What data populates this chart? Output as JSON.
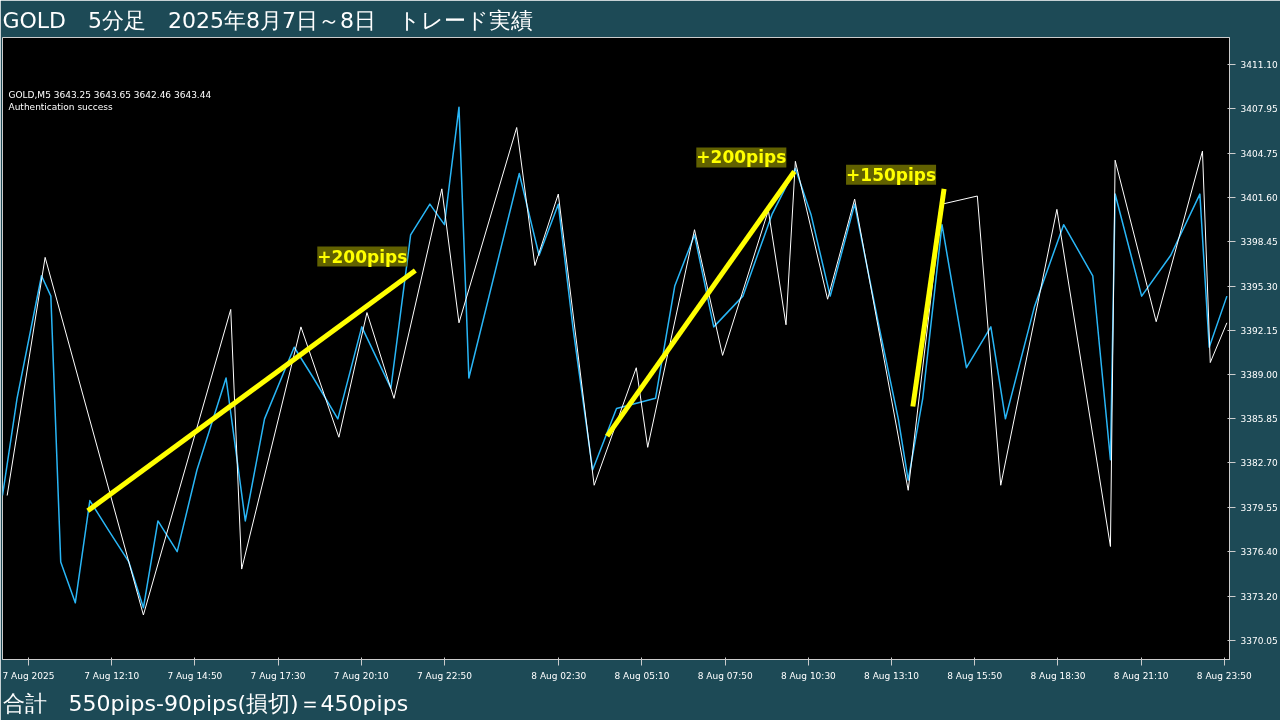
{
  "chart_data": {
    "type": "line",
    "title": "GOLD　5分足　2025年8月7日～8日　トレード実績",
    "annotations": [
      "GOLD,M5  3643.25 3643.65 3642.46 3643.44",
      "Authentication success",
      "合計　550pips-90pips(損切)＝450pips"
    ],
    "xlim": [
      "2025-08-07T08:40",
      "2025-08-09T00:00"
    ],
    "ylim": [
      3368.7,
      3413.0
    ],
    "xticks": [
      {
        "value": "2025-08-07T09:30",
        "label": "7 Aug 2025"
      },
      {
        "value": "2025-08-07T12:10",
        "label": "7 Aug 12:10"
      },
      {
        "value": "2025-08-07T14:50",
        "label": "7 Aug 14:50"
      },
      {
        "value": "2025-08-07T17:30",
        "label": "7 Aug 17:30"
      },
      {
        "value": "2025-08-07T20:10",
        "label": "7 Aug 20:10"
      },
      {
        "value": "2025-08-07T22:50",
        "label": "7 Aug 22:50"
      },
      {
        "value": "2025-08-08T02:30",
        "label": "8 Aug 02:30"
      },
      {
        "value": "2025-08-08T05:10",
        "label": "8 Aug 05:10"
      },
      {
        "value": "2025-08-08T07:50",
        "label": "8 Aug 07:50"
      },
      {
        "value": "2025-08-08T10:30",
        "label": "8 Aug 10:30"
      },
      {
        "value": "2025-08-08T13:10",
        "label": "8 Aug 13:10"
      },
      {
        "value": "2025-08-08T15:50",
        "label": "8 Aug 15:50"
      },
      {
        "value": "2025-08-08T18:30",
        "label": "8 Aug 18:30"
      },
      {
        "value": "2025-08-08T21:10",
        "label": "8 Aug 21:10"
      },
      {
        "value": "2025-08-08T23:50",
        "label": "8 Aug 23:50"
      }
    ],
    "yticks": [
      {
        "value": 3370.05,
        "label": "3370.05"
      },
      {
        "value": 3373.2,
        "label": "3373.20"
      },
      {
        "value": 3376.4,
        "label": "3376.40"
      },
      {
        "value": 3379.55,
        "label": "3379.55"
      },
      {
        "value": 3382.7,
        "label": "3382.70"
      },
      {
        "value": 3385.85,
        "label": "3385.85"
      },
      {
        "value": 3389.0,
        "label": "3389.00"
      },
      {
        "value": 3392.15,
        "label": "3392.15"
      },
      {
        "value": 3395.3,
        "label": "3395.30"
      },
      {
        "value": 3398.45,
        "label": "3398.45"
      },
      {
        "value": 3401.6,
        "label": "3401.60"
      },
      {
        "value": 3404.75,
        "label": "3404.75"
      },
      {
        "value": 3407.95,
        "label": "3407.95"
      },
      {
        "value": 3411.1,
        "label": "3411.10"
      }
    ],
    "grid": false,
    "series": [
      {
        "color": "#29b6f6",
        "x": [
          "2025-08-07T08:40",
          "2025-08-07T09:08",
          "2025-08-07T09:55",
          "2025-08-07T10:13",
          "2025-08-07T10:32",
          "2025-08-07T11:00",
          "2025-08-07T11:28",
          "2025-08-07T12:05",
          "2025-08-07T12:43",
          "2025-08-07T13:11",
          "2025-08-07T13:39",
          "2025-08-07T14:16",
          "2025-08-07T14:54",
          "2025-08-07T15:50",
          "2025-08-07T16:27",
          "2025-08-07T17:04",
          "2025-08-07T18:01",
          "2025-08-07T18:38",
          "2025-08-07T19:25",
          "2025-08-07T20:11",
          "2025-08-07T21:07",
          "2025-08-07T21:45",
          "2025-08-07T22:22",
          "2025-08-07T22:50",
          "2025-08-07T23:18",
          "2025-08-07T23:37",
          "2025-08-08T01:14",
          "2025-08-08T01:52",
          "2025-08-08T02:29",
          "2025-08-08T02:57",
          "2025-08-08T03:35",
          "2025-08-08T04:21",
          "2025-08-08T05:36",
          "2025-08-08T06:13",
          "2025-08-08T06:51",
          "2025-08-08T07:28",
          "2025-08-08T08:24",
          "2025-08-08T09:20",
          "2025-08-08T10:05",
          "2025-08-08T10:35",
          "2025-08-08T11:12",
          "2025-08-08T11:59",
          "2025-08-08T12:46",
          "2025-08-08T13:23",
          "2025-08-08T13:42",
          "2025-08-08T14:10",
          "2025-08-08T14:47",
          "2025-08-08T15:34",
          "2025-08-08T16:21",
          "2025-08-08T16:49",
          "2025-08-08T17:45",
          "2025-08-08T18:41",
          "2025-08-08T19:37",
          "2025-08-08T20:11",
          "2025-08-08T20:20",
          "2025-08-08T21:11",
          "2025-08-08T22:07",
          "2025-08-08T23:03",
          "2025-08-08T23:21",
          "2025-08-08T23:55"
        ],
        "values": [
          3380.38,
          3387.3,
          3396.03,
          3394.58,
          3375.65,
          3372.74,
          3380.02,
          3377.84,
          3375.65,
          3372.38,
          3378.57,
          3376.38,
          3382.2,
          3388.75,
          3378.57,
          3385.84,
          3390.94,
          3388.75,
          3385.84,
          3392.39,
          3388.03,
          3398.94,
          3401.13,
          3399.67,
          3408.04,
          3388.75,
          3403.31,
          3397.49,
          3401.13,
          3392.39,
          3382.2,
          3386.57,
          3387.3,
          3395.3,
          3398.94,
          3392.39,
          3394.58,
          3400.4,
          3403.68,
          3400.4,
          3394.58,
          3401.13,
          3392.39,
          3385.84,
          3381.48,
          3387.3,
          3399.67,
          3389.48,
          3392.39,
          3385.84,
          3393.85,
          3399.67,
          3396.03,
          3382.93,
          3401.85,
          3394.58,
          3397.49,
          3401.85,
          3390.94,
          3394.58
        ]
      },
      {
        "color": "#ffffff",
        "x": [
          "2025-08-07T08:49",
          "2025-08-07T10:02",
          "2025-08-07T13:11",
          "2025-08-07T15:59",
          "2025-08-07T16:20",
          "2025-08-07T18:14",
          "2025-08-07T19:27",
          "2025-08-07T20:21",
          "2025-08-07T21:13",
          "2025-08-07T22:45",
          "2025-08-07T23:18",
          "2025-08-08T01:09",
          "2025-08-08T01:44",
          "2025-08-08T02:29",
          "2025-08-08T03:38",
          "2025-08-08T04:59",
          "2025-08-08T05:21",
          "2025-08-08T06:51",
          "2025-08-08T07:45",
          "2025-08-08T09:13",
          "2025-08-08T09:47",
          "2025-08-08T10:05",
          "2025-08-08T11:07",
          "2025-08-08T11:59",
          "2025-08-08T13:42",
          "2025-08-08T14:47",
          "2025-08-08T15:55",
          "2025-08-08T16:40",
          "2025-08-08T18:28",
          "2025-08-08T20:11",
          "2025-08-08T20:20",
          "2025-08-08T21:39",
          "2025-08-08T23:08",
          "2025-08-08T23:23",
          "2025-08-08T23:55"
        ],
        "values": [
          3380.38,
          3397.34,
          3371.87,
          3393.63,
          3375.14,
          3392.39,
          3384.53,
          3393.41,
          3387.3,
          3402.22,
          3392.68,
          3406.59,
          3396.76,
          3401.85,
          3381.11,
          3389.48,
          3383.81,
          3399.31,
          3390.36,
          3400.69,
          3392.54,
          3404.18,
          3394.36,
          3401.49,
          3380.75,
          3401.13,
          3401.71,
          3381.11,
          3400.76,
          3376.75,
          3404.26,
          3392.76,
          3404.91,
          3389.85,
          3392.68
        ]
      },
      {
        "name": "+200pips",
        "color": "#ffff00",
        "x": [
          "2025-08-07T11:24",
          "2025-08-07T21:54"
        ],
        "values": [
          3379.29,
          3396.4
        ]
      },
      {
        "name": "+200pips",
        "color": "#ffff00",
        "x": [
          "2025-08-08T04:03",
          "2025-08-08T10:03"
        ],
        "values": [
          3384.61,
          3403.46
        ]
      },
      {
        "name": "+150pips",
        "color": "#ffff00",
        "x": [
          "2025-08-08T13:51",
          "2025-08-08T14:51"
        ],
        "values": [
          3386.72,
          3402.22
        ]
      }
    ]
  }
}
